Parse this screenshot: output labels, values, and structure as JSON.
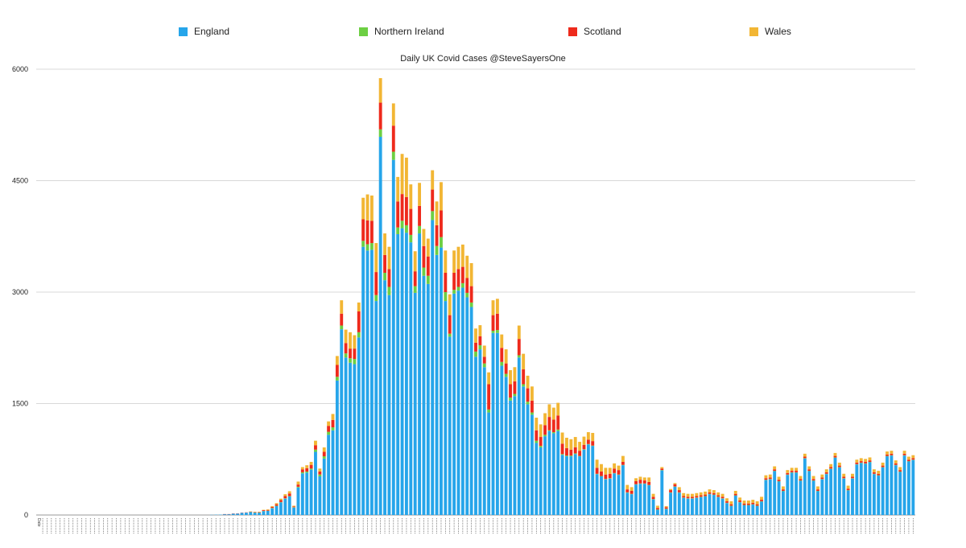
{
  "legend": [
    {
      "name": "England",
      "color": "#26a5ea"
    },
    {
      "name": "Northern Ireland",
      "color": "#6dcf43"
    },
    {
      "name": "Scotland",
      "color": "#ee2a1c"
    },
    {
      "name": "Wales",
      "color": "#f2b634"
    }
  ],
  "chart_data": {
    "type": "bar",
    "stacked": true,
    "title": "Daily UK Covid Cases @SteveSayersOne",
    "xlabel": "",
    "ylabel": "",
    "ylim": [
      0,
      6000
    ],
    "yticks": [
      0,
      1500,
      3000,
      4500,
      6000
    ],
    "grid": true,
    "legend_position": "top",
    "x_first_tick_label": "Date",
    "x_tick_note": "daily date labels (dd/mm/yy, Feb–Aug 2020) rendered too small to read",
    "series": [
      {
        "name": "England",
        "color": "#26a5ea",
        "values": [
          0,
          0,
          0,
          0,
          0,
          0,
          0,
          0,
          0,
          0,
          0,
          0,
          0,
          0,
          0,
          0,
          0,
          0,
          0,
          0,
          0,
          0,
          0,
          0,
          0,
          0,
          0,
          0,
          0,
          0,
          0,
          0,
          0,
          0,
          0,
          0,
          0,
          0,
          0,
          0,
          2,
          4,
          5,
          11,
          11,
          18,
          20,
          30,
          32,
          40,
          32,
          32,
          52,
          55,
          90,
          120,
          170,
          220,
          250,
          100,
          370,
          560,
          570,
          610,
          850,
          520,
          760,
          1080,
          1140,
          1810,
          2500,
          2120,
          2050,
          2030,
          2390,
          3610,
          3560,
          3570,
          2880,
          5090,
          3160,
          2960,
          4780,
          3780,
          3860,
          3800,
          3670,
          2990,
          3790,
          3220,
          3110,
          3970,
          3500,
          3600,
          2880,
          2400,
          2980,
          3020,
          3060,
          2930,
          2800,
          2130,
          2230,
          1990,
          1380,
          2450,
          2450,
          2010,
          1860,
          1540,
          1600,
          2120,
          1730,
          1490,
          1350,
          970,
          910,
          1060,
          1130,
          1100,
          1130,
          810,
          790,
          790,
          820,
          790,
          880,
          950,
          930,
          550,
          520,
          480,
          490,
          560,
          540,
          670,
          300,
          280,
          410,
          420,
          420,
          400,
          210,
          70,
          600,
          80,
          300,
          380,
          300,
          230,
          220,
          220,
          230,
          240,
          250,
          280,
          270,
          240,
          220,
          160,
          120,
          260,
          170,
          130,
          130,
          140,
          120,
          180,
          470,
          480,
          590,
          450,
          320,
          540,
          570,
          570,
          460,
          760,
          590,
          460,
          320,
          480,
          550,
          620,
          770,
          640,
          490,
          330,
          490,
          680,
          700,
          690,
          710,
          550,
          530,
          640,
          790,
          800,
          670,
          580,
          800,
          720,
          740
        ]
      },
      {
        "name": "Northern Ireland",
        "color": "#6dcf43",
        "values": [
          0,
          0,
          0,
          0,
          0,
          0,
          0,
          0,
          0,
          0,
          0,
          0,
          0,
          0,
          0,
          0,
          0,
          0,
          0,
          0,
          0,
          0,
          0,
          0,
          0,
          0,
          0,
          0,
          0,
          0,
          0,
          0,
          0,
          0,
          0,
          0,
          0,
          0,
          0,
          0,
          0,
          0,
          0,
          0,
          0,
          0,
          0,
          0,
          0,
          1,
          2,
          2,
          3,
          3,
          5,
          5,
          5,
          5,
          5,
          5,
          10,
          15,
          15,
          15,
          30,
          25,
          30,
          40,
          40,
          50,
          50,
          55,
          60,
          70,
          70,
          80,
          85,
          90,
          80,
          100,
          100,
          110,
          110,
          90,
          100,
          100,
          100,
          90,
          100,
          110,
          110,
          120,
          120,
          140,
          120,
          40,
          50,
          50,
          60,
          60,
          60,
          70,
          55,
          50,
          40,
          30,
          40,
          50,
          40,
          40,
          30,
          30,
          30,
          35,
          30,
          30,
          20,
          20,
          10,
          15,
          20,
          10,
          10,
          10,
          10,
          5,
          5,
          5,
          5,
          5,
          5,
          5,
          5,
          5,
          5,
          5,
          5,
          5,
          5,
          5,
          5,
          5,
          5,
          5,
          5,
          5,
          5,
          5,
          5,
          5,
          5,
          5,
          5,
          5,
          5,
          5,
          5,
          5,
          5,
          5,
          5,
          5,
          5,
          5,
          5,
          5,
          5,
          5,
          5,
          5,
          5,
          5,
          5,
          5,
          5,
          5,
          5,
          5,
          5,
          5,
          5,
          5,
          5,
          5,
          5,
          5,
          5,
          5,
          5,
          5,
          5,
          5,
          5,
          5,
          5,
          5,
          5,
          5,
          5,
          5,
          5,
          5,
          5,
          5,
          5,
          5,
          5,
          5,
          5,
          5,
          5,
          5,
          5,
          5,
          5,
          5,
          5,
          5,
          5,
          5,
          5
        ]
      },
      {
        "name": "Scotland",
        "color": "#ee2a1c",
        "values": [
          0,
          0,
          0,
          0,
          0,
          0,
          0,
          0,
          0,
          0,
          0,
          0,
          0,
          0,
          0,
          0,
          0,
          0,
          0,
          0,
          0,
          0,
          0,
          0,
          0,
          0,
          0,
          0,
          0,
          0,
          0,
          0,
          0,
          0,
          0,
          0,
          0,
          0,
          0,
          0,
          0,
          0,
          0,
          1,
          1,
          2,
          2,
          3,
          3,
          5,
          5,
          5,
          10,
          10,
          15,
          20,
          25,
          30,
          35,
          10,
          30,
          40,
          45,
          50,
          60,
          40,
          60,
          80,
          100,
          160,
          160,
          140,
          130,
          140,
          280,
          290,
          320,
          300,
          310,
          360,
          240,
          240,
          350,
          350,
          360,
          380,
          350,
          200,
          270,
          290,
          260,
          290,
          280,
          360,
          260,
          250,
          230,
          240,
          220,
          200,
          220,
          120,
          120,
          90,
          340,
          210,
          220,
          190,
          140,
          180,
          170,
          220,
          200,
          180,
          160,
          140,
          120,
          130,
          180,
          170,
          190,
          140,
          100,
          80,
          80,
          70,
          60,
          60,
          60,
          80,
          60,
          60,
          60,
          60,
          60,
          40,
          40,
          40,
          40,
          50,
          40,
          40,
          30,
          20,
          20,
          20,
          30,
          30,
          30,
          20,
          20,
          20,
          20,
          20,
          20,
          20,
          20,
          20,
          20,
          20,
          20,
          20,
          20,
          20,
          20,
          20,
          20,
          20,
          20,
          20,
          20,
          20,
          20,
          20,
          20,
          20,
          20,
          20,
          20,
          20,
          20,
          20,
          20,
          20,
          20,
          20,
          20,
          20,
          20,
          20,
          20,
          20,
          20,
          20,
          20,
          20,
          20,
          20,
          20,
          20,
          20,
          20,
          20,
          20,
          20,
          20,
          20,
          20,
          20,
          20,
          20,
          20,
          20,
          20,
          20,
          20,
          20,
          20,
          60
        ]
      },
      {
        "name": "Wales",
        "color": "#f2b634",
        "values": [
          0,
          0,
          0,
          0,
          0,
          0,
          0,
          0,
          0,
          0,
          0,
          0,
          0,
          0,
          0,
          0,
          0,
          0,
          0,
          0,
          0,
          0,
          0,
          0,
          0,
          0,
          0,
          0,
          0,
          0,
          0,
          0,
          0,
          0,
          0,
          0,
          0,
          0,
          0,
          0,
          0,
          0,
          0,
          0,
          0,
          0,
          0,
          0,
          0,
          2,
          5,
          5,
          5,
          8,
          10,
          15,
          20,
          25,
          30,
          10,
          40,
          30,
          40,
          40,
          60,
          40,
          60,
          60,
          80,
          120,
          180,
          180,
          220,
          180,
          120,
          290,
          350,
          340,
          390,
          330,
          290,
          300,
          300,
          330,
          540,
          530,
          330,
          270,
          310,
          230,
          240,
          260,
          320,
          380,
          300,
          280,
          300,
          300,
          300,
          300,
          310,
          190,
          150,
          150,
          160,
          200,
          200,
          180,
          190,
          190,
          190,
          180,
          210,
          170,
          190,
          170,
          170,
          160,
          170,
          160,
          170,
          150,
          140,
          140,
          140,
          120,
          110,
          100,
          110,
          110,
          100,
          90,
          80,
          70,
          60,
          80,
          60,
          50,
          40,
          40,
          40,
          60,
          40,
          30,
          20,
          15,
          15,
          15,
          40,
          40,
          40,
          40,
          40,
          40,
          40,
          40,
          40,
          40,
          40,
          40,
          40,
          40,
          40,
          40,
          40,
          40,
          40,
          40,
          40,
          40,
          40,
          40,
          40,
          40,
          40,
          40,
          40,
          40,
          40,
          40,
          40,
          40,
          40,
          40,
          40,
          40,
          40,
          40,
          40,
          40,
          40,
          40,
          40,
          40,
          40,
          40,
          40,
          40,
          40,
          40,
          40,
          40,
          40,
          40,
          40,
          40,
          40,
          40,
          40,
          40,
          40,
          40,
          40,
          40,
          40,
          40,
          40,
          40,
          40,
          40,
          40,
          40,
          40,
          40,
          40,
          40,
          40
        ]
      }
    ]
  }
}
